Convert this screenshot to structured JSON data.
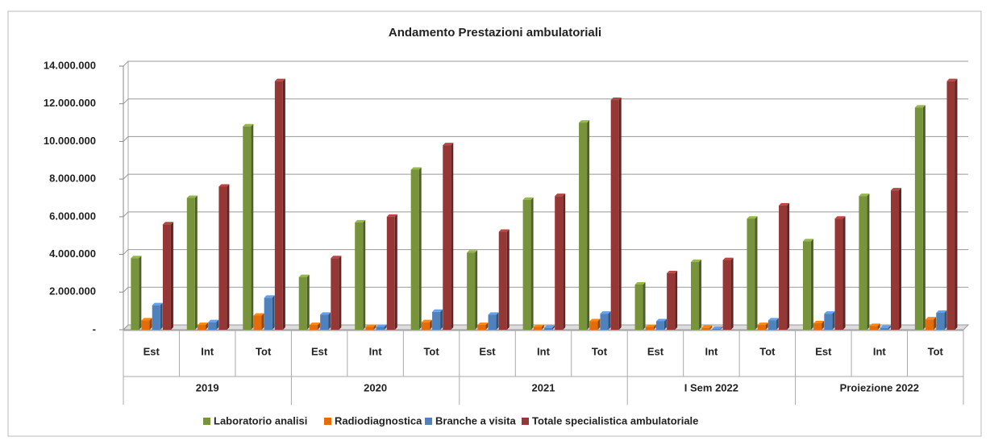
{
  "chart_data": {
    "type": "bar",
    "title": "Andamento Prestazioni ambulatoriali",
    "categories": [
      "Est",
      "Int",
      "Tot",
      "Est",
      "Int",
      "Tot",
      "Est",
      "Int",
      "Tot",
      "Est",
      "Int",
      "Tot",
      "Est",
      "Int",
      "Tot"
    ],
    "groups": [
      "2019",
      "2020",
      "2021",
      "I Sem 2022",
      "Proiezione 2022"
    ],
    "series": [
      {
        "name": "Laboratorio analisi",
        "color": "#77933c",
        "values": [
          3800000,
          7000000,
          10800000,
          2800000,
          5700000,
          8500000,
          4100000,
          6900000,
          11000000,
          2400000,
          3600000,
          5900000,
          4700000,
          7100000,
          11800000
        ]
      },
      {
        "name": "Radiodiagnostica",
        "color": "#e46c0a",
        "values": [
          500000,
          250000,
          750000,
          250000,
          150000,
          400000,
          250000,
          150000,
          450000,
          150000,
          100000,
          250000,
          350000,
          200000,
          550000
        ]
      },
      {
        "name": "Branche a visita",
        "color": "#4f81bd",
        "values": [
          1300000,
          400000,
          1700000,
          800000,
          150000,
          950000,
          800000,
          100000,
          850000,
          450000,
          50000,
          500000,
          850000,
          100000,
          900000
        ]
      },
      {
        "name": "Totale specialistica ambulatoriale",
        "color": "#953735",
        "values": [
          5600000,
          7600000,
          13200000,
          3800000,
          6000000,
          9800000,
          5200000,
          7100000,
          12200000,
          3000000,
          3700000,
          6600000,
          5900000,
          7400000,
          13200000
        ]
      }
    ],
    "ylim": [
      0,
      14000000
    ],
    "yticks": [
      {
        "value": 0,
        "label": "-"
      },
      {
        "value": 2000000,
        "label": "2.000.000"
      },
      {
        "value": 4000000,
        "label": "4.000.000"
      },
      {
        "value": 6000000,
        "label": "6.000.000"
      },
      {
        "value": 8000000,
        "label": "8.000.000"
      },
      {
        "value": 10000000,
        "label": "10.000.000"
      },
      {
        "value": 12000000,
        "label": "12.000.000"
      },
      {
        "value": 14000000,
        "label": "14.000.000"
      }
    ],
    "grid": true,
    "legend": "bottom"
  }
}
